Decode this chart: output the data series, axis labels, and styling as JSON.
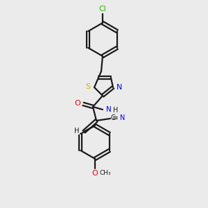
{
  "background_color": "#ebebeb",
  "bond_color": "#1a1a1a",
  "atom_colors": {
    "Cl": "#22bb00",
    "S": "#bbbb00",
    "N": "#0000ee",
    "O": "#ee0000",
    "C": "#1a1a1a",
    "H": "#1a1a1a"
  },
  "figsize": [
    3.0,
    3.0
  ],
  "dpi": 100
}
